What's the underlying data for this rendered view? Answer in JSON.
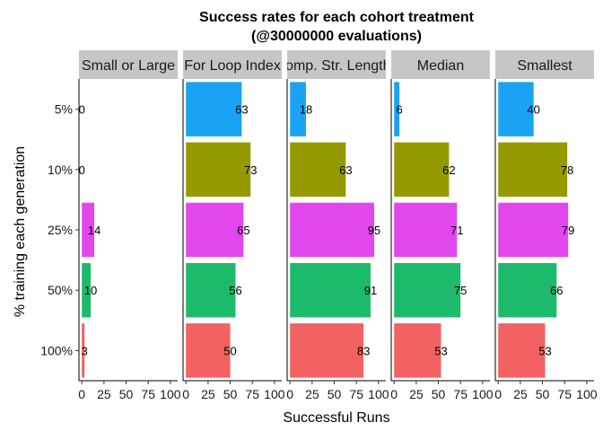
{
  "chart_data": {
    "type": "bar",
    "orientation": "horizontal",
    "title": "Success rates for each cohort treatment",
    "subtitle": "(@30000000 evaluations)",
    "xlabel": "Successful Runs",
    "ylabel": "% training each generation",
    "xlim": [
      0,
      100
    ],
    "x_ticks": [
      "0",
      "25",
      "50",
      "75",
      "100"
    ],
    "categories": [
      "5%",
      "10%",
      "25%",
      "50%",
      "100%"
    ],
    "category_colors": [
      "#1aa3f2",
      "#949a00",
      "#e247ed",
      "#1dba6b",
      "#f26262"
    ],
    "grid": false,
    "legend": "none",
    "facets": [
      {
        "name": "Small or Large",
        "values": [
          0,
          0,
          14,
          10,
          3
        ]
      },
      {
        "name": "For Loop Index",
        "values": [
          63,
          73,
          65,
          56,
          50
        ]
      },
      {
        "name": "Comp. Str. Lengths",
        "values": [
          18,
          63,
          95,
          91,
          83
        ]
      },
      {
        "name": "Median",
        "values": [
          6,
          62,
          71,
          75,
          53
        ]
      },
      {
        "name": "Smallest",
        "values": [
          40,
          78,
          79,
          66,
          53
        ]
      }
    ]
  }
}
